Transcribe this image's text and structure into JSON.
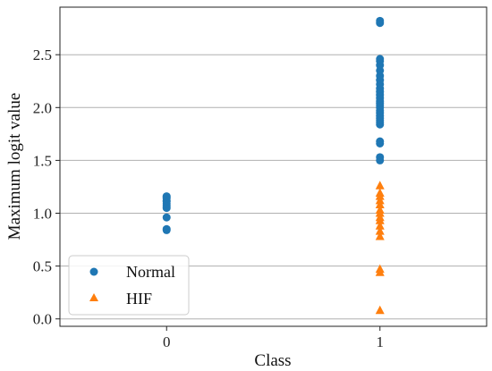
{
  "chart_data": {
    "type": "scatter",
    "xlabel": "Class",
    "ylabel": "Maximum logit value",
    "x_ticks": [
      0,
      1
    ],
    "y_ticks": [
      0.0,
      0.5,
      1.0,
      1.5,
      2.0,
      2.5
    ],
    "y_tick_labels": [
      "0.0",
      "0.5",
      "1.0",
      "1.5",
      "2.0",
      "2.5"
    ],
    "x_tick_labels": [
      "0",
      "1"
    ],
    "xlim": [
      -0.5,
      1.5
    ],
    "ylim": [
      -0.07,
      2.95
    ],
    "grid": "horizontal",
    "legend_placement": "lower-left",
    "series": [
      {
        "name": "Normal",
        "marker": "circle",
        "color": "#1f77b4",
        "points": [
          [
            0,
            0.84
          ],
          [
            0,
            0.85
          ],
          [
            0,
            0.96
          ],
          [
            0,
            1.05
          ],
          [
            0,
            1.07
          ],
          [
            0,
            1.09
          ],
          [
            0,
            1.11
          ],
          [
            0,
            1.12
          ],
          [
            0,
            1.14
          ],
          [
            0,
            1.15
          ],
          [
            0,
            1.16
          ],
          [
            1,
            1.5
          ],
          [
            1,
            1.53
          ],
          [
            1,
            1.66
          ],
          [
            1,
            1.68
          ],
          [
            1,
            1.84
          ],
          [
            1,
            1.86
          ],
          [
            1,
            1.88
          ],
          [
            1,
            1.9
          ],
          [
            1,
            1.92
          ],
          [
            1,
            1.95
          ],
          [
            1,
            1.97
          ],
          [
            1,
            2.0
          ],
          [
            1,
            2.02
          ],
          [
            1,
            2.04
          ],
          [
            1,
            2.06
          ],
          [
            1,
            2.09
          ],
          [
            1,
            2.12
          ],
          [
            1,
            2.15
          ],
          [
            1,
            2.18
          ],
          [
            1,
            2.22
          ],
          [
            1,
            2.26
          ],
          [
            1,
            2.3
          ],
          [
            1,
            2.35
          ],
          [
            1,
            2.4
          ],
          [
            1,
            2.44
          ],
          [
            1,
            2.46
          ],
          [
            1,
            2.8
          ],
          [
            1,
            2.82
          ]
        ]
      },
      {
        "name": "HIF",
        "marker": "triangle",
        "color": "#ff7f0e",
        "points": [
          [
            1,
            0.08
          ],
          [
            1,
            0.44
          ],
          [
            1,
            0.47
          ],
          [
            1,
            0.78
          ],
          [
            1,
            0.83
          ],
          [
            1,
            0.88
          ],
          [
            1,
            0.93
          ],
          [
            1,
            0.96
          ],
          [
            1,
            1.0
          ],
          [
            1,
            1.03
          ],
          [
            1,
            1.08
          ],
          [
            1,
            1.12
          ],
          [
            1,
            1.16
          ],
          [
            1,
            1.19
          ],
          [
            1,
            1.26
          ]
        ]
      }
    ]
  }
}
